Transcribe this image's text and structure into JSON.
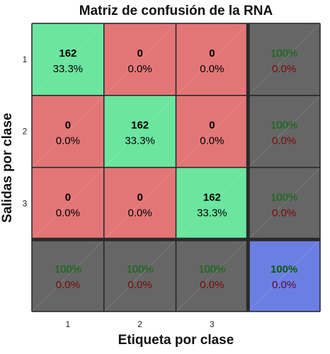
{
  "chart_data": {
    "type": "heatmap",
    "title": "Matriz de confusión de la RNA",
    "xlabel": "Etiqueta por clase",
    "ylabel": "Salidas por clase",
    "x_ticks": [
      "1",
      "2",
      "3"
    ],
    "y_ticks": [
      "1",
      "2",
      "3"
    ],
    "matrix": [
      [
        {
          "count": "162",
          "pct": "33.3%"
        },
        {
          "count": "0",
          "pct": "0.0%"
        },
        {
          "count": "0",
          "pct": "0.0%"
        }
      ],
      [
        {
          "count": "0",
          "pct": "0.0%"
        },
        {
          "count": "162",
          "pct": "33.3%"
        },
        {
          "count": "0",
          "pct": "0.0%"
        }
      ],
      [
        {
          "count": "0",
          "pct": "0.0%"
        },
        {
          "count": "0",
          "pct": "0.0%"
        },
        {
          "count": "162",
          "pct": "33.3%"
        }
      ]
    ],
    "row_summary": [
      {
        "correct": "100%",
        "incorrect": "0.0%"
      },
      {
        "correct": "100%",
        "incorrect": "0.0%"
      },
      {
        "correct": "100%",
        "incorrect": "0.0%"
      }
    ],
    "col_summary": [
      {
        "correct": "100%",
        "incorrect": "0.0%"
      },
      {
        "correct": "100%",
        "incorrect": "0.0%"
      },
      {
        "correct": "100%",
        "incorrect": "0.0%"
      }
    ],
    "overall": {
      "correct": "100%",
      "incorrect": "0.0%"
    },
    "colors": {
      "correct_cell": "#6be59f",
      "incorrect_cell": "#e27677",
      "summary_cell": "#666666",
      "overall_cell": "#6b7fe3",
      "grid": "#222222"
    }
  }
}
